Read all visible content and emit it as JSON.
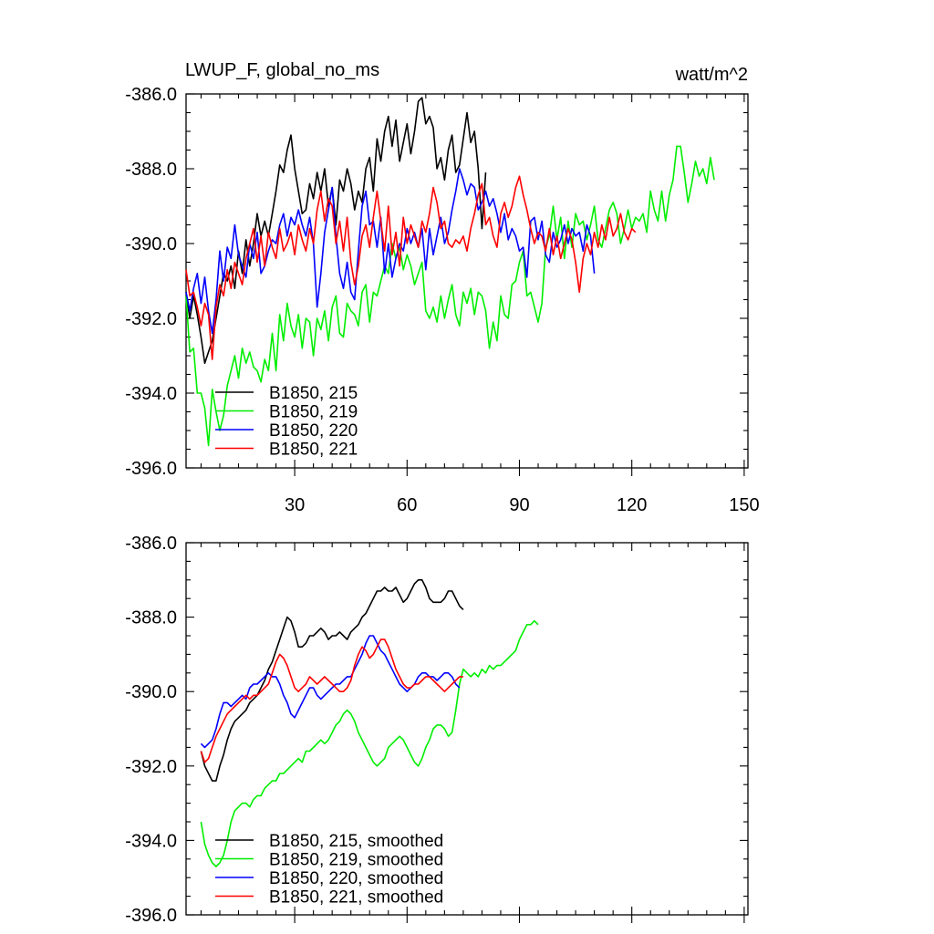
{
  "chart_data": [
    {
      "type": "line",
      "title": "LWUP_F, global_no_ms",
      "units": "watt/m^2",
      "xlim": [
        1,
        151
      ],
      "ylim": [
        -396,
        -386
      ],
      "xticks": [
        30,
        60,
        90,
        120,
        150
      ],
      "yticks": [
        -386.0,
        -388.0,
        -390.0,
        -392.0,
        -394.0,
        -396.0
      ],
      "ytick_labels": [
        "-386.0",
        "-388.0",
        "-390.0",
        "-392.0",
        "-394.0",
        "-396.0"
      ],
      "xtick_labels": [
        "30",
        "60",
        "90",
        "120",
        "150"
      ],
      "grid": false,
      "legend_position": "bottom-left",
      "series": [
        {
          "name": "B1850, 215",
          "color": "#000000",
          "x_start": 1,
          "values": [
            -391.3,
            -392.0,
            -391.4,
            -391.9,
            -392.5,
            -393.2,
            -392.9,
            -392.6,
            -392.0,
            -391.4,
            -390.8,
            -391.0,
            -390.6,
            -391.2,
            -390.2,
            -390.8,
            -389.9,
            -390.6,
            -390.0,
            -389.2,
            -389.8,
            -389.4,
            -389.8,
            -389.2,
            -388.6,
            -387.9,
            -388.1,
            -387.5,
            -387.1,
            -388.0,
            -388.6,
            -389.2,
            -389.1,
            -388.4,
            -388.8,
            -388.1,
            -388.6,
            -388.0,
            -389.0,
            -388.5,
            -389.5,
            -388.3,
            -388.6,
            -388.0,
            -388.4,
            -389.1,
            -388.6,
            -388.9,
            -388.0,
            -387.7,
            -388.6,
            -387.2,
            -387.8,
            -387.0,
            -386.6,
            -387.4,
            -386.7,
            -387.8,
            -387.3,
            -386.8,
            -387.6,
            -387.0,
            -386.2,
            -386.1,
            -386.8,
            -386.6,
            -386.9,
            -388.0,
            -387.7,
            -388.3,
            -387.5,
            -387.1,
            -388.1,
            -387.9,
            -387.2,
            -386.5,
            -387.3,
            -387.0,
            -388.0,
            -389.6,
            -388.1
          ]
        },
        {
          "name": "B1850, 219",
          "color": "#00ee00",
          "x_start": 1,
          "values": [
            -391.4,
            -392.9,
            -392.8,
            -394.0,
            -394.0,
            -394.4,
            -395.4,
            -393.9,
            -394.5,
            -395.0,
            -394.6,
            -393.8,
            -393.4,
            -393.0,
            -393.6,
            -392.8,
            -393.2,
            -392.9,
            -393.3,
            -393.4,
            -393.7,
            -393.1,
            -393.4,
            -392.4,
            -393.4,
            -391.9,
            -392.6,
            -391.6,
            -392.2,
            -392.5,
            -391.9,
            -392.8,
            -392.0,
            -392.1,
            -393.0,
            -392.0,
            -392.3,
            -391.8,
            -392.6,
            -391.7,
            -391.4,
            -392.4,
            -392.5,
            -391.6,
            -391.8,
            -391.9,
            -392.2,
            -391.3,
            -391.1,
            -392.1,
            -391.3,
            -391.4,
            -391.0,
            -390.6,
            -390.8,
            -390.0,
            -390.4,
            -390.1,
            -390.7,
            -390.3,
            -390.6,
            -391.1,
            -390.8,
            -390.5,
            -391.8,
            -392.0,
            -391.7,
            -392.1,
            -391.4,
            -392.0,
            -391.5,
            -391.1,
            -391.9,
            -392.2,
            -391.3,
            -391.6,
            -391.2,
            -391.9,
            -391.3,
            -391.4,
            -391.8,
            -392.8,
            -392.1,
            -392.6,
            -391.4,
            -391.9,
            -392.0,
            -391.1,
            -391.0,
            -390.5,
            -390.2,
            -391.4,
            -391.3,
            -391.7,
            -392.1,
            -391.6,
            -390.1,
            -389.8,
            -389.0,
            -389.9,
            -389.3,
            -390.4,
            -389.4,
            -390.1,
            -389.2,
            -389.5,
            -389.4,
            -389.9,
            -389.5,
            -389.0,
            -389.9,
            -390.1,
            -389.6,
            -389.1,
            -388.9,
            -389.2,
            -390.0,
            -389.6,
            -389.1,
            -389.6,
            -389.3,
            -389.4,
            -389.2,
            -389.7,
            -388.6,
            -389.1,
            -389.4,
            -388.6,
            -389.4,
            -388.7,
            -388.3,
            -387.4,
            -387.4,
            -388.1,
            -388.9,
            -388.4,
            -387.8,
            -388.2,
            -388.0,
            -388.4,
            -387.7,
            -388.3
          ]
        },
        {
          "name": "B1850, 220",
          "color": "#0000ff",
          "x_start": 1,
          "values": [
            -391.3,
            -391.8,
            -391.2,
            -390.8,
            -391.6,
            -390.9,
            -391.8,
            -392.4,
            -391.5,
            -390.2,
            -391.0,
            -390.1,
            -390.4,
            -389.5,
            -390.3,
            -390.6,
            -390.9,
            -390.0,
            -390.4,
            -389.7,
            -390.8,
            -390.6,
            -390.2,
            -389.9,
            -390.0,
            -389.5,
            -389.2,
            -389.8,
            -389.3,
            -389.5,
            -389.1,
            -389.5,
            -389.8,
            -389.3,
            -390.0,
            -391.7,
            -390.8,
            -389.7,
            -389.1,
            -388.5,
            -389.8,
            -390.8,
            -391.2,
            -390.5,
            -391.3,
            -391.5,
            -390.2,
            -389.0,
            -388.6,
            -389.5,
            -389.4,
            -390.1,
            -389.3,
            -390.8,
            -390.0,
            -390.9,
            -390.4,
            -390.0,
            -390.2,
            -389.6,
            -390.0,
            -389.7,
            -390.1,
            -389.6,
            -390.7,
            -389.6,
            -390.3,
            -389.8,
            -389.3,
            -390.0,
            -389.7,
            -389.1,
            -388.6,
            -388.0,
            -388.3,
            -388.7,
            -388.4,
            -388.5,
            -389.1,
            -388.9,
            -388.6,
            -389.0,
            -388.8,
            -389.2,
            -389.7,
            -389.2,
            -389.9,
            -389.6,
            -389.8,
            -390.2,
            -390.1,
            -390.9,
            -389.4,
            -389.3,
            -389.9,
            -389.4,
            -390.3,
            -390.5,
            -389.7,
            -390.1,
            -389.9,
            -389.5,
            -390.0,
            -389.6,
            -389.8,
            -389.7,
            -390.2,
            -389.5,
            -389.8,
            -390.8
          ]
        },
        {
          "name": "B1850, 221",
          "color": "#ff0000",
          "x_start": 1,
          "values": [
            -390.7,
            -391.4,
            -391.3,
            -391.7,
            -392.2,
            -391.6,
            -391.9,
            -393.1,
            -391.7,
            -391.1,
            -391.4,
            -390.7,
            -391.2,
            -390.5,
            -390.8,
            -391.1,
            -390.4,
            -390.0,
            -389.6,
            -390.5,
            -389.8,
            -390.6,
            -389.7,
            -390.1,
            -390.4,
            -389.6,
            -390.2,
            -390.0,
            -389.7,
            -390.3,
            -389.5,
            -389.9,
            -390.2,
            -389.6,
            -390.0,
            -389.1,
            -388.6,
            -389.4,
            -388.8,
            -389.0,
            -390.0,
            -389.4,
            -390.2,
            -389.3,
            -390.5,
            -391.1,
            -390.6,
            -389.8,
            -389.5,
            -390.1,
            -389.3,
            -388.6,
            -389.4,
            -390.2,
            -389.0,
            -390.3,
            -389.7,
            -390.6,
            -389.3,
            -390.0,
            -389.5,
            -389.8,
            -390.1,
            -389.4,
            -389.7,
            -389.2,
            -388.5,
            -388.9,
            -389.6,
            -389.4,
            -390.0,
            -390.1,
            -389.9,
            -390.0,
            -389.8,
            -390.2,
            -389.6,
            -389.2,
            -388.7,
            -388.4,
            -389.5,
            -389.3,
            -389.8,
            -390.1,
            -389.2,
            -388.9,
            -389.3,
            -389.0,
            -388.5,
            -388.2,
            -388.7,
            -389.1,
            -389.6,
            -390.0,
            -389.7,
            -389.8,
            -390.2,
            -389.6,
            -390.3,
            -389.8,
            -390.4,
            -390.0,
            -389.6,
            -389.9,
            -390.5,
            -391.3,
            -390.4,
            -390.0,
            -390.3,
            -389.7,
            -390.1,
            -389.5,
            -389.9,
            -389.3,
            -389.8,
            -389.6,
            -389.2,
            -389.7,
            -389.9,
            -389.6,
            -389.7
          ]
        }
      ]
    },
    {
      "type": "line",
      "xlim": [
        1,
        151
      ],
      "ylim": [
        -396,
        -386
      ],
      "xticks": [
        30,
        60,
        90,
        120,
        150
      ],
      "yticks": [
        -386.0,
        -388.0,
        -390.0,
        -392.0,
        -394.0,
        -396.0
      ],
      "ytick_labels": [
        "-386.0",
        "-388.0",
        "-390.0",
        "-392.0",
        "-394.0",
        "-396.0"
      ],
      "grid": false,
      "legend_position": "bottom-left",
      "series": [
        {
          "name": "B1850, 215, smoothed",
          "color": "#000000",
          "x_start": 5,
          "values": [
            -391.6,
            -392.0,
            -392.2,
            -392.4,
            -392.4,
            -392.0,
            -391.7,
            -391.3,
            -391.0,
            -390.8,
            -390.7,
            -390.6,
            -390.5,
            -390.3,
            -390.2,
            -390.1,
            -389.9,
            -389.7,
            -389.4,
            -389.2,
            -388.9,
            -388.6,
            -388.3,
            -388.0,
            -388.1,
            -388.4,
            -388.8,
            -388.8,
            -388.7,
            -388.5,
            -388.5,
            -388.4,
            -388.3,
            -388.4,
            -388.6,
            -388.5,
            -388.5,
            -388.4,
            -388.5,
            -388.6,
            -388.4,
            -388.3,
            -388.2,
            -388.0,
            -387.9,
            -387.7,
            -387.5,
            -387.3,
            -387.3,
            -387.2,
            -387.3,
            -387.3,
            -387.2,
            -387.4,
            -387.6,
            -387.5,
            -387.3,
            -387.1,
            -387.0,
            -387.0,
            -387.2,
            -387.5,
            -387.6,
            -387.6,
            -387.6,
            -387.5,
            -387.3,
            -387.3,
            -387.5,
            -387.7,
            -387.8
          ]
        },
        {
          "name": "B1850, 219, smoothed",
          "color": "#00ee00",
          "x_start": 5,
          "values": [
            -393.5,
            -394.1,
            -394.4,
            -394.6,
            -394.7,
            -394.6,
            -394.4,
            -394.0,
            -393.5,
            -393.2,
            -393.1,
            -393.0,
            -393.0,
            -393.1,
            -392.9,
            -392.8,
            -392.8,
            -392.6,
            -392.5,
            -392.4,
            -392.4,
            -392.2,
            -392.2,
            -392.1,
            -392.0,
            -391.9,
            -391.8,
            -391.9,
            -391.6,
            -391.6,
            -391.5,
            -391.4,
            -391.3,
            -391.4,
            -391.3,
            -391.1,
            -390.9,
            -390.8,
            -390.6,
            -390.5,
            -390.6,
            -390.8,
            -391.1,
            -391.3,
            -391.5,
            -391.7,
            -391.9,
            -392.0,
            -391.9,
            -391.8,
            -391.5,
            -391.4,
            -391.3,
            -391.2,
            -391.3,
            -391.5,
            -391.7,
            -391.9,
            -392.0,
            -391.8,
            -391.5,
            -391.3,
            -391.0,
            -390.9,
            -390.9,
            -391.0,
            -391.2,
            -391.1,
            -390.5,
            -389.8,
            -389.4,
            -389.5,
            -389.6,
            -389.5,
            -389.6,
            -389.4,
            -389.5,
            -389.3,
            -389.4,
            -389.3,
            -389.3,
            -389.2,
            -389.1,
            -389.0,
            -388.9,
            -388.6,
            -388.4,
            -388.2,
            -388.2,
            -388.1,
            -388.2
          ]
        },
        {
          "name": "B1850, 220, smoothed",
          "color": "#0000ff",
          "x_start": 5,
          "values": [
            -391.4,
            -391.5,
            -391.4,
            -391.3,
            -391.0,
            -390.6,
            -390.3,
            -390.3,
            -390.4,
            -390.3,
            -390.2,
            -390.1,
            -390.2,
            -389.9,
            -389.8,
            -389.8,
            -389.7,
            -389.6,
            -389.5,
            -389.6,
            -389.6,
            -389.8,
            -390.1,
            -390.3,
            -390.6,
            -390.7,
            -390.5,
            -390.3,
            -390.1,
            -389.9,
            -389.9,
            -390.1,
            -390.2,
            -390.1,
            -390.0,
            -389.9,
            -389.8,
            -389.8,
            -389.7,
            -389.6,
            -389.6,
            -389.4,
            -389.2,
            -389.0,
            -388.7,
            -388.5,
            -388.5,
            -388.7,
            -388.9,
            -389.0,
            -389.2,
            -389.4,
            -389.6,
            -389.8,
            -389.9,
            -390.0,
            -389.9,
            -389.8,
            -389.6,
            -389.5,
            -389.5,
            -389.6,
            -389.6,
            -389.7,
            -389.6,
            -389.5,
            -389.5,
            -389.6,
            -389.8,
            -389.9
          ]
        },
        {
          "name": "B1850, 221, smoothed",
          "color": "#ff0000",
          "x_start": 5,
          "values": [
            -391.6,
            -391.9,
            -391.8,
            -391.5,
            -391.2,
            -391.0,
            -390.8,
            -390.6,
            -390.5,
            -390.4,
            -390.3,
            -390.2,
            -390.1,
            -390.2,
            -390.1,
            -390.1,
            -390.0,
            -389.9,
            -389.8,
            -389.5,
            -389.2,
            -389.0,
            -389.1,
            -389.3,
            -389.6,
            -389.9,
            -390.0,
            -389.9,
            -389.8,
            -389.6,
            -389.7,
            -389.8,
            -389.7,
            -389.6,
            -389.7,
            -389.8,
            -389.9,
            -390.0,
            -390.0,
            -389.9,
            -389.7,
            -389.3,
            -389.0,
            -388.8,
            -388.9,
            -389.1,
            -389.0,
            -388.8,
            -388.6,
            -388.6,
            -388.8,
            -389.1,
            -389.4,
            -389.6,
            -389.8,
            -389.9,
            -389.9,
            -389.8,
            -389.8,
            -389.7,
            -389.6,
            -389.6,
            -389.7,
            -389.8,
            -389.9,
            -390.0,
            -389.9,
            -389.8,
            -389.7,
            -389.6,
            -389.6
          ]
        }
      ]
    }
  ]
}
